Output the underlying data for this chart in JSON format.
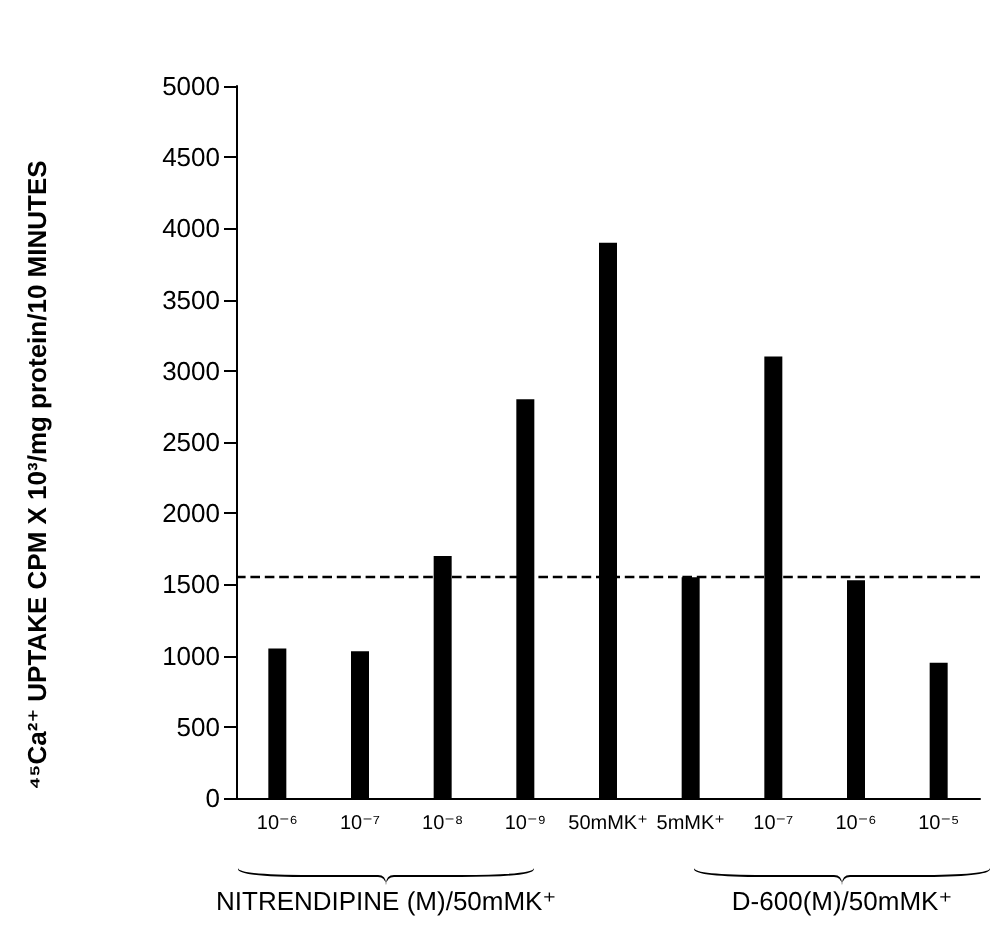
{
  "chart_data": {
    "type": "bar",
    "ylabel": "⁴⁵Ca²⁺ UPTAKE CPM X 10³/mg protein/10 MINUTES",
    "categories": [
      "10⁻⁶",
      "10⁻⁷",
      "10⁻⁸",
      "10⁻⁹",
      "50mMK⁺",
      "5mMK⁺",
      "10⁻⁷",
      "10⁻⁶",
      "10⁻⁵"
    ],
    "values": [
      1050,
      1030,
      1700,
      2800,
      3900,
      1550,
      3100,
      1530,
      950
    ],
    "color": "#000000",
    "ylim": [
      0,
      5000
    ],
    "yticks": [
      0,
      500,
      1000,
      1500,
      2000,
      2500,
      3000,
      3500,
      4000,
      4500,
      5000
    ],
    "ref_lines": [
      {
        "axis": "y",
        "value": 1550,
        "line_style": "dashed",
        "color": "#000000"
      }
    ],
    "annotations": [
      "NITRENDIPINE (M)/50mMK⁺",
      "D-600(M)/50mMK⁺"
    ],
    "grid": false
  }
}
